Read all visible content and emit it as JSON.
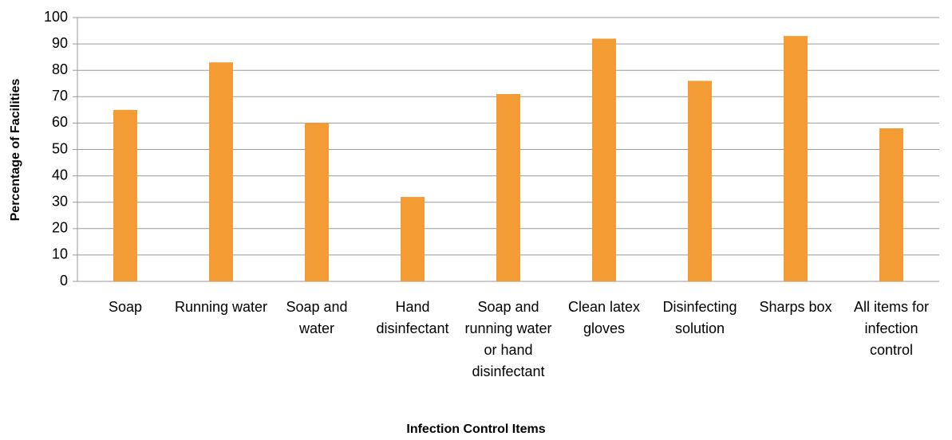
{
  "chart_data": {
    "type": "bar",
    "x_label": "Infection Control Items",
    "y_label": "Percentage of Facilities",
    "categories": [
      "Soap",
      "Running water",
      "Soap and water",
      "Hand disinfectant",
      "Soap and running water or hand disinfectant",
      "Clean latex gloves",
      "Disinfecting solution",
      "Sharps box",
      "All items for infection control"
    ],
    "values": [
      65,
      83,
      60,
      32,
      71,
      92,
      76,
      93,
      58
    ],
    "color": "#f39c34",
    "ylim": [
      0,
      100
    ],
    "yticks": [
      0,
      10,
      20,
      30,
      40,
      50,
      60,
      70,
      80,
      90,
      100
    ],
    "grid": true
  }
}
